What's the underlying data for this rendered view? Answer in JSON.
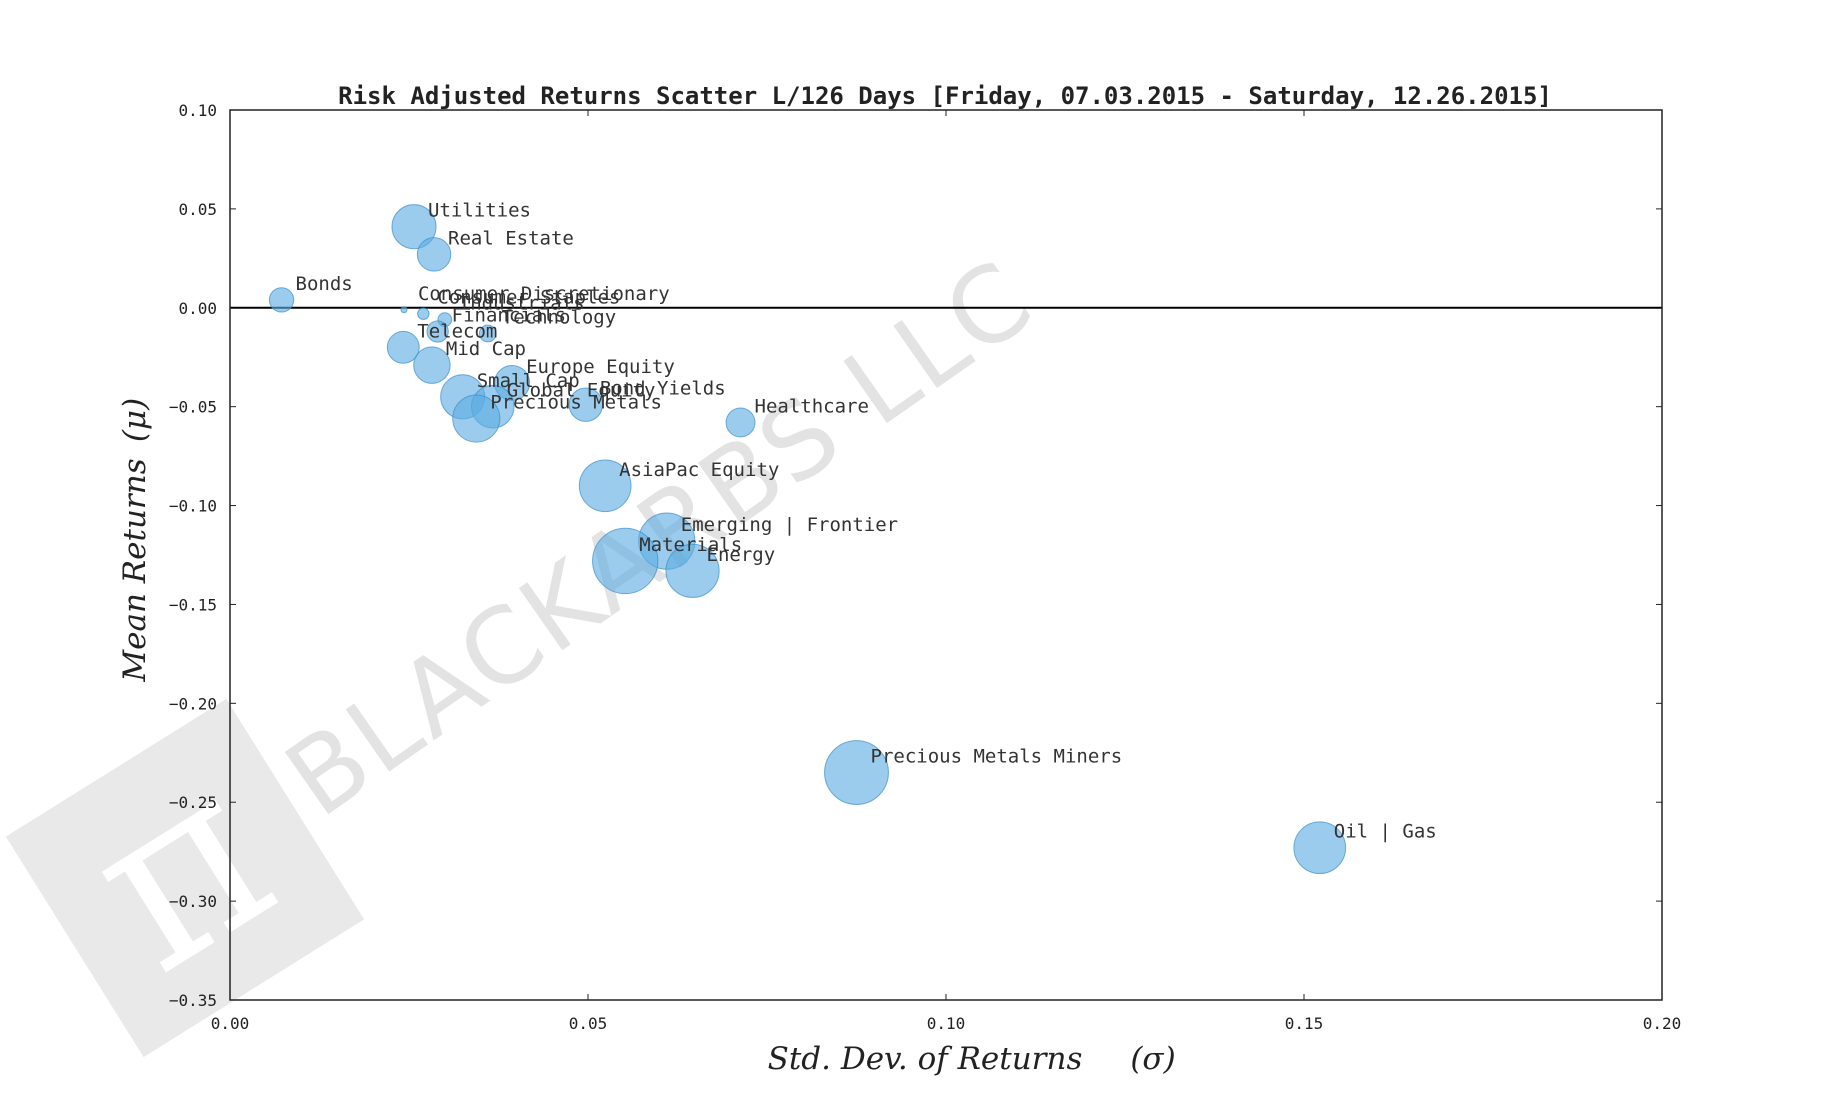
{
  "chart_data": {
    "type": "scatter",
    "title": "Risk Adjusted Returns Scatter L/126 Days [Friday, 07.03.2015 - Saturday, 12.26.2015]",
    "xlabel_text": "Std.  Dev.  of  Returns",
    "xlabel_symbol": "(σ)",
    "ylabel_text": "Mean  Returns",
    "ylabel_symbol": "(μ)",
    "xlim": [
      0.0,
      0.2
    ],
    "ylim": [
      -0.35,
      0.1
    ],
    "xticks": [
      0.0,
      0.05,
      0.1,
      0.15,
      0.2
    ],
    "xtick_labels": [
      "0.00",
      "0.05",
      "0.10",
      "0.15",
      "0.20"
    ],
    "yticks": [
      0.1,
      0.05,
      0.0,
      -0.05,
      -0.1,
      -0.15,
      -0.2,
      -0.25,
      -0.3,
      -0.35
    ],
    "ytick_labels": [
      "0.10",
      "0.05",
      "0.00",
      "−0.05",
      "−0.10",
      "−0.15",
      "−0.20",
      "−0.25",
      "−0.30",
      "−0.35"
    ],
    "reference_line_y": 0.0,
    "marker_color": "#5dade2",
    "watermark": "BLACKARBS LLC",
    "points": [
      {
        "label": "Utilities",
        "x": 0.0257,
        "y": 0.041,
        "size": 0.58
      },
      {
        "label": "Real Estate",
        "x": 0.0285,
        "y": 0.027,
        "size": 0.44
      },
      {
        "label": "Bonds",
        "x": 0.0072,
        "y": 0.004,
        "size": 0.32
      },
      {
        "label": "Consumer Discretionary",
        "x": 0.0243,
        "y": -0.001,
        "size": 0.06
      },
      {
        "label": "Consumer Staples",
        "x": 0.027,
        "y": -0.003,
        "size": 0.15
      },
      {
        "label": "Industrials",
        "x": 0.03,
        "y": -0.006,
        "size": 0.18
      },
      {
        "label": "Technology",
        "x": 0.036,
        "y": -0.013,
        "size": 0.22
      },
      {
        "label": "Financials",
        "x": 0.029,
        "y": -0.012,
        "size": 0.28
      },
      {
        "label": "Telecom",
        "x": 0.0242,
        "y": -0.02,
        "size": 0.42
      },
      {
        "label": "Mid Cap",
        "x": 0.0282,
        "y": -0.029,
        "size": 0.48
      },
      {
        "label": "Europe Equity",
        "x": 0.0394,
        "y": -0.038,
        "size": 0.46
      },
      {
        "label": "Small Cap",
        "x": 0.0325,
        "y": -0.045,
        "size": 0.58
      },
      {
        "label": "Bond Yields",
        "x": 0.0497,
        "y": -0.049,
        "size": 0.44
      },
      {
        "label": "Global Equity",
        "x": 0.0367,
        "y": -0.05,
        "size": 0.56
      },
      {
        "label": "Precious Metals",
        "x": 0.0344,
        "y": -0.056,
        "size": 0.62
      },
      {
        "label": "Healthcare",
        "x": 0.0713,
        "y": -0.058,
        "size": 0.38
      },
      {
        "label": "AsiaPac Equity",
        "x": 0.0524,
        "y": -0.09,
        "size": 0.68
      },
      {
        "label": "Emerging | Frontier",
        "x": 0.061,
        "y": -0.118,
        "size": 0.74
      },
      {
        "label": "Energy",
        "x": 0.0646,
        "y": -0.133,
        "size": 0.7
      },
      {
        "label": "Materials",
        "x": 0.0552,
        "y": -0.128,
        "size": 0.86
      },
      {
        "label": "Precious Metals Miners",
        "x": 0.0875,
        "y": -0.235,
        "size": 0.84
      },
      {
        "label": "Oil | Gas",
        "x": 0.1522,
        "y": -0.273,
        "size": 0.68
      }
    ]
  }
}
